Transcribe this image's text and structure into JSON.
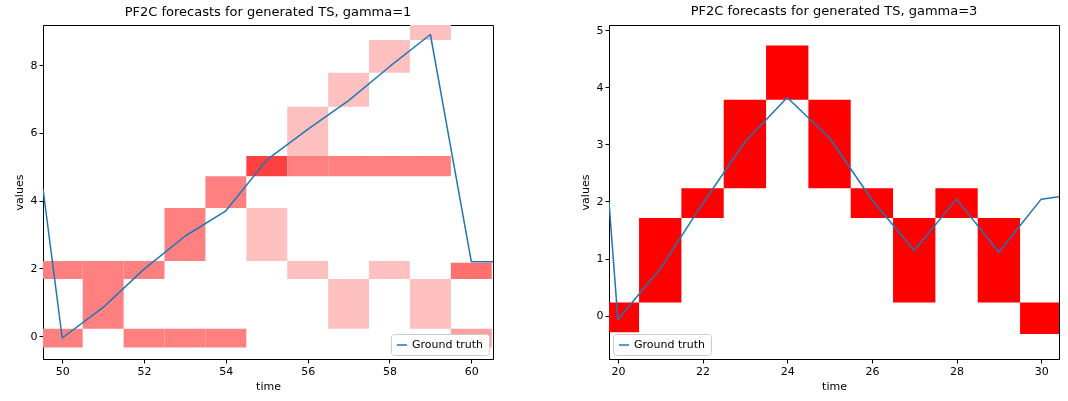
{
  "chart_data": [
    {
      "type": "bar",
      "title": "PF2C forecasts for generated TS, gamma=1",
      "xlabel": "time",
      "ylabel": "values",
      "xlim": [
        49.53,
        60.53
      ],
      "ylim": [
        -0.67,
        9.18
      ],
      "xticks": [
        50,
        52,
        54,
        56,
        58,
        60
      ],
      "yticks": [
        0,
        2,
        4,
        6,
        8
      ],
      "legend": "bottom right",
      "series": [
        {
          "x": [
            50,
            51,
            52,
            53,
            54,
            55,
            56,
            57,
            58,
            59,
            60
          ],
          "base": [
            -0.33,
            0.22,
            -0.33,
            -0.33,
            -0.33,
            2.22,
            1.69,
            0.22,
            1.69,
            0.22,
            -0.33
          ],
          "values": [
            0.55,
            1.47,
            0.55,
            0.55,
            0.55,
            1.56,
            0.53,
            1.47,
            0.53,
            1.47,
            0.55
          ],
          "colors": [
            "#ff8080",
            "#ff8080",
            "#ff8080",
            "#ff8080",
            "#ff8080",
            "#ffc0c0",
            "#ffc0c0",
            "#ffc0c0",
            "#ffc0c0",
            "#ffc0c0",
            "#ffa0a0"
          ]
        },
        {
          "x": [
            50,
            51,
            52,
            53,
            54,
            55,
            56,
            57,
            58,
            59,
            60
          ],
          "base": [
            1.69,
            1.69,
            1.69,
            2.22,
            3.78,
            4.72,
            4.72,
            4.72,
            4.72,
            4.72,
            1.69
          ],
          "values": [
            0.53,
            0.53,
            0.53,
            1.56,
            0.94,
            0.6,
            0.6,
            0.6,
            0.6,
            0.6,
            0.48
          ],
          "colors": [
            "#ff8080",
            "#ff8080",
            "#ff8080",
            "#ff8080",
            "#ff8080",
            "#ff4040",
            "#ff8080",
            "#ff8080",
            "#ff8080",
            "#ff8080",
            "#ff7070"
          ]
        },
        {
          "x": [
            56,
            57,
            58,
            59
          ],
          "base": [
            5.32,
            6.77,
            7.77,
            8.74
          ],
          "values": [
            1.45,
            1.0,
            0.97,
            0.44
          ],
          "color": "#ffc0c0"
        },
        {
          "type": "line",
          "name": "Ground truth",
          "color": "#1f77b4",
          "x": [
            49.53,
            50,
            51,
            52,
            53,
            54,
            55,
            56,
            57,
            58,
            59,
            60,
            60.53
          ],
          "values": [
            4.35,
            -0.05,
            0.85,
            1.98,
            2.95,
            3.7,
            5.2,
            6.1,
            6.95,
            7.95,
            8.9,
            2.2,
            2.2
          ]
        }
      ]
    },
    {
      "type": "bar",
      "title": "PF2C forecasts for generated TS, gamma=3",
      "xlabel": "time",
      "ylabel": "values",
      "xlim": [
        19.79,
        30.42
      ],
      "ylim": [
        -0.76,
        5.09
      ],
      "xticks": [
        20,
        22,
        24,
        26,
        28,
        30
      ],
      "yticks": [
        0,
        1,
        2,
        3,
        4,
        5
      ],
      "legend": "bottom left",
      "series": [
        {
          "color": "#ff0000",
          "x": [
            20,
            21,
            22,
            23,
            24,
            25,
            26,
            27,
            28,
            29,
            30
          ],
          "base": [
            -0.29,
            0.23,
            1.71,
            2.23,
            3.78,
            2.23,
            1.71,
            0.23,
            1.71,
            0.23,
            -0.32
          ],
          "values": [
            0.52,
            1.48,
            0.52,
            1.55,
            0.95,
            1.55,
            0.52,
            1.48,
            0.52,
            1.48,
            0.55
          ]
        },
        {
          "type": "line",
          "name": "Ground truth",
          "color": "#1f77b4",
          "x": [
            19.79,
            20,
            21,
            22,
            23,
            24,
            25,
            26,
            27,
            28,
            29,
            30,
            30.42
          ],
          "values": [
            1.99,
            -0.07,
            0.82,
            1.96,
            3.04,
            3.82,
            3.11,
            2.03,
            1.14,
            2.04,
            1.11,
            2.04,
            2.08
          ]
        }
      ]
    }
  ]
}
